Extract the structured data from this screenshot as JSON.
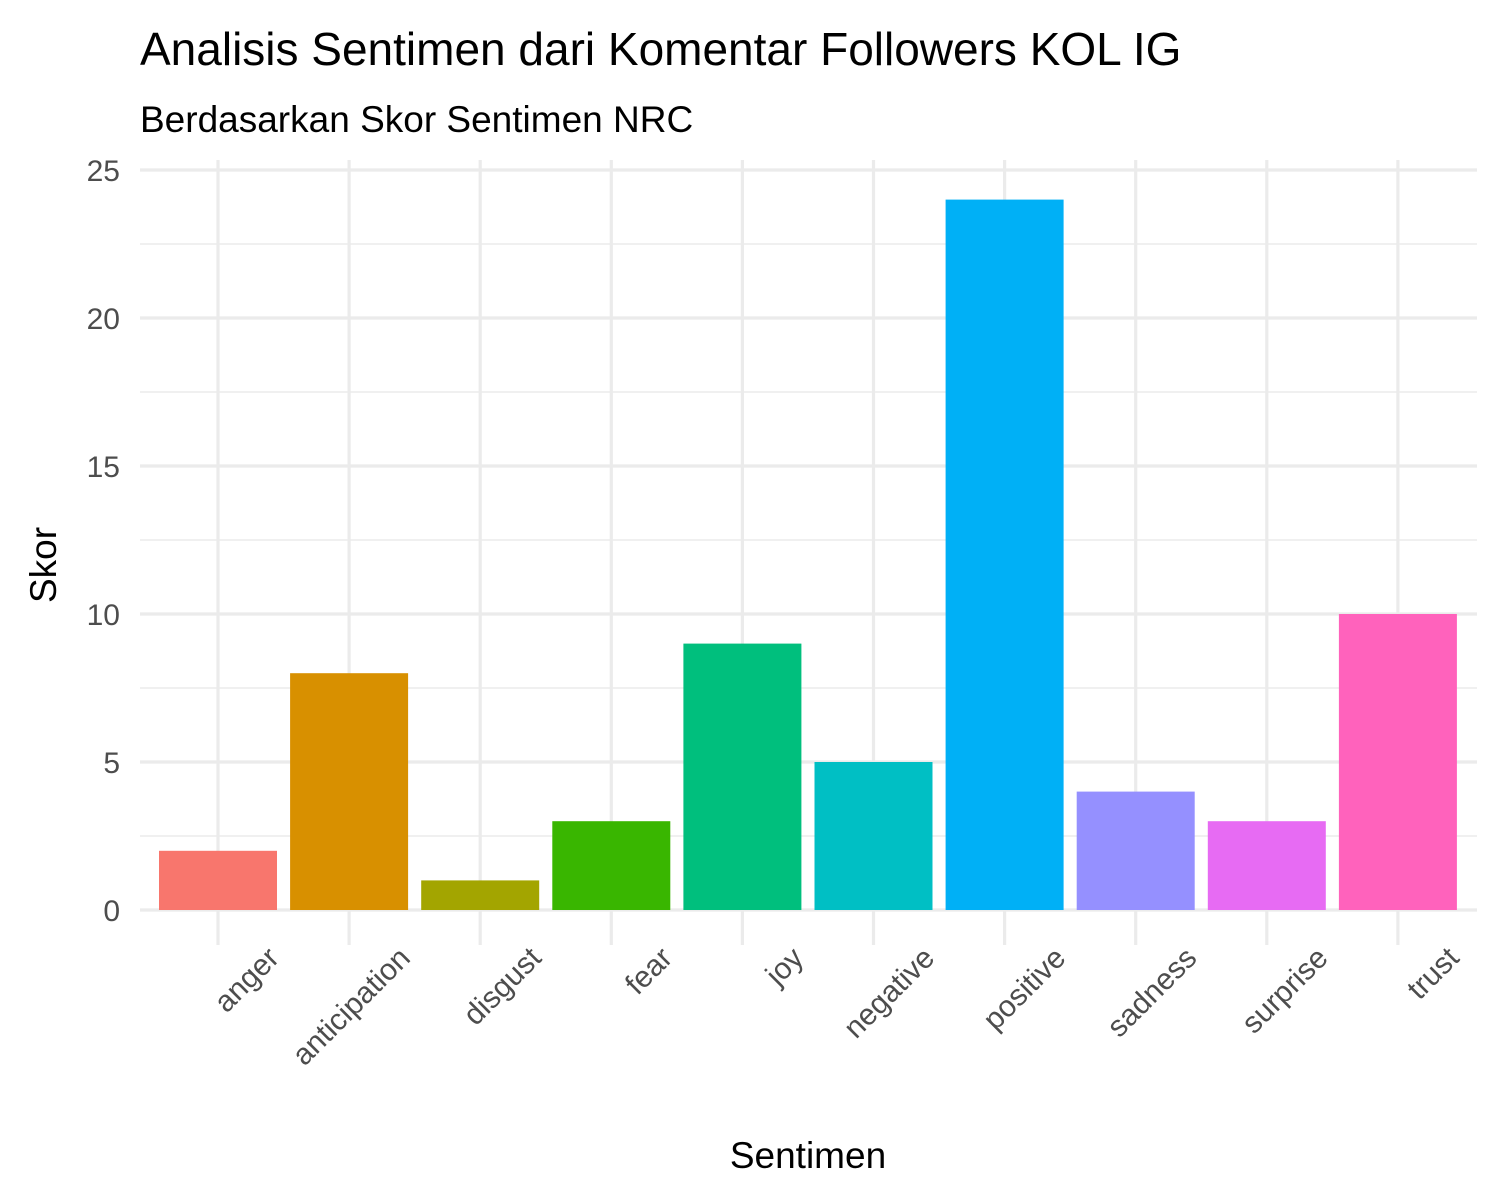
{
  "chart_data": {
    "type": "bar",
    "title": "Analisis Sentimen dari Komentar Followers KOL IG",
    "subtitle": "Berdasarkan Skor Sentimen NRC",
    "xlabel": "Sentimen",
    "ylabel": "Skor",
    "categories": [
      "anger",
      "anticipation",
      "disgust",
      "fear",
      "joy",
      "negative",
      "positive",
      "sadness",
      "surprise",
      "trust"
    ],
    "values": [
      2,
      8,
      1,
      3,
      9,
      5,
      24,
      4,
      3,
      10
    ],
    "colors": [
      "#F8766D",
      "#D89000",
      "#A3A500",
      "#39B600",
      "#00BF7D",
      "#00BFC4",
      "#00B0F6",
      "#9590FF",
      "#E76BF3",
      "#FF62BC"
    ],
    "ylim": [
      0,
      25
    ],
    "yticks": [
      "0",
      "5",
      "10",
      "15",
      "20",
      "25"
    ],
    "grid": true,
    "legend": "none"
  }
}
